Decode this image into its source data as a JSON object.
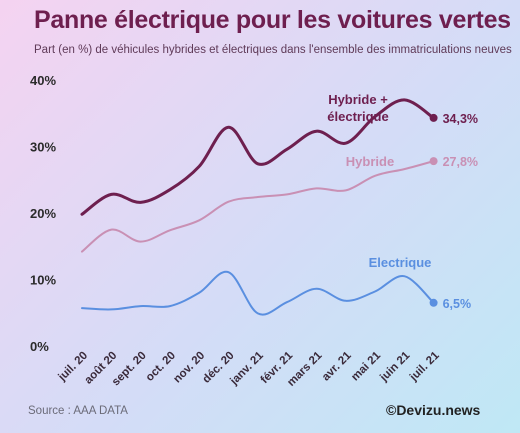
{
  "header": {
    "title": "Panne électrique pour les voitures vertes",
    "subtitle": "Part (en %) de véhicules hybrides et électriques dans l'ensemble des immatriculations neuves"
  },
  "footer": {
    "source": "Source : AAA DATA",
    "credit": "©Devizu.news"
  },
  "chart_data": {
    "type": "line",
    "title": "Panne électrique pour les voitures vertes",
    "subtitle": "Part (en %) de véhicules hybrides et électriques dans l'ensemble des immatriculations neuves",
    "xlabel": "",
    "ylabel": "",
    "ylim": [
      0,
      40
    ],
    "y_ticks": [
      0,
      10,
      20,
      30,
      40
    ],
    "y_tick_labels": [
      "0%",
      "10%",
      "20%",
      "30%",
      "40%"
    ],
    "grid": false,
    "categories": [
      "juil. 20",
      "août 20",
      "sept. 20",
      "oct. 20",
      "nov. 20",
      "déc. 20",
      "janv. 21",
      "févr. 21",
      "mars 21",
      "avr. 21",
      "mai 21",
      "juin 21",
      "juil. 21"
    ],
    "series": [
      {
        "name": "Hybride + électrique",
        "label_lines": [
          "Hybride +",
          "électrique"
        ],
        "color": "#6e1f4f",
        "values": [
          19.8,
          22.8,
          21.6,
          23.5,
          27.0,
          32.9,
          27.4,
          29.6,
          32.3,
          30.5,
          34.5,
          37.0,
          34.3
        ],
        "end_label": "34,3%"
      },
      {
        "name": "Hybride",
        "label_lines": [
          "Hybride"
        ],
        "color": "#c990b4",
        "values": [
          14.2,
          17.5,
          15.7,
          17.4,
          18.9,
          21.7,
          22.4,
          22.8,
          23.7,
          23.4,
          25.6,
          26.6,
          27.8
        ],
        "end_label": "27,8%"
      },
      {
        "name": "Electrique",
        "label_lines": [
          "Electrique"
        ],
        "color": "#5a8fe0",
        "values": [
          5.7,
          5.5,
          6.0,
          6.0,
          8.0,
          11.1,
          4.9,
          6.6,
          8.6,
          6.8,
          8.2,
          10.5,
          6.5
        ],
        "end_label": "6,5%"
      }
    ]
  }
}
